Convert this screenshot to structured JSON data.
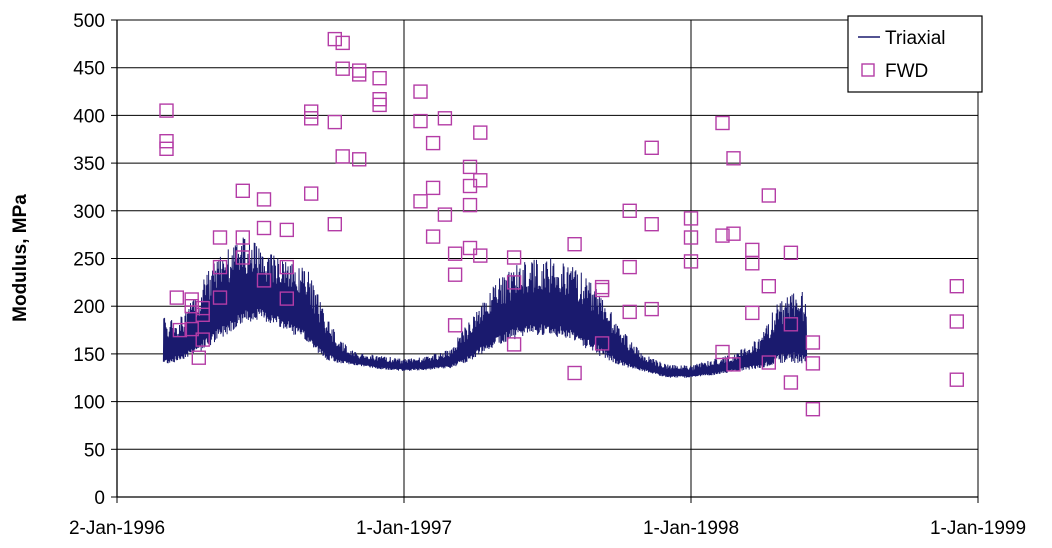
{
  "chart_data": {
    "type": "line",
    "title": "",
    "xlabel": "",
    "ylabel": "Modulus, MPa",
    "x_ticks": [
      "2-Jan-1996",
      "1-Jan-1997",
      "1-Jan-1998",
      "1-Jan-1999"
    ],
    "xlim": [
      "1996-01-02",
      "1999-01-01"
    ],
    "ylim": [
      0,
      500
    ],
    "y_ticks": [
      0,
      50,
      100,
      150,
      200,
      250,
      300,
      350,
      400,
      450,
      500
    ],
    "grid": "both",
    "legend": "top-right",
    "series": [
      {
        "name": "Triaxial",
        "kind": "line",
        "color": "#1a1a6e",
        "note_shape": "daily oscillating modulus; low and high envelope per date",
        "envelope": [
          {
            "x": "1996-03-01",
            "low": 138,
            "high": 190
          },
          {
            "x": "1996-03-20",
            "low": 142,
            "high": 185
          },
          {
            "x": "1996-04-10",
            "low": 150,
            "high": 210
          },
          {
            "x": "1996-05-01",
            "low": 158,
            "high": 245
          },
          {
            "x": "1996-05-20",
            "low": 170,
            "high": 262
          },
          {
            "x": "1996-06-10",
            "low": 182,
            "high": 272
          },
          {
            "x": "1996-07-01",
            "low": 186,
            "high": 265
          },
          {
            "x": "1996-07-20",
            "low": 180,
            "high": 255
          },
          {
            "x": "1996-08-10",
            "low": 172,
            "high": 248
          },
          {
            "x": "1996-09-01",
            "low": 160,
            "high": 238
          },
          {
            "x": "1996-09-20",
            "low": 145,
            "high": 200
          },
          {
            "x": "1996-10-10",
            "low": 140,
            "high": 165
          },
          {
            "x": "1996-11-01",
            "low": 138,
            "high": 152
          },
          {
            "x": "1996-12-01",
            "low": 134,
            "high": 148
          },
          {
            "x": "1997-01-01",
            "low": 132,
            "high": 145
          },
          {
            "x": "1997-02-01",
            "low": 133,
            "high": 148
          },
          {
            "x": "1997-03-01",
            "low": 135,
            "high": 155
          },
          {
            "x": "1997-03-20",
            "low": 140,
            "high": 180
          },
          {
            "x": "1997-04-10",
            "low": 150,
            "high": 205
          },
          {
            "x": "1997-05-01",
            "low": 160,
            "high": 230
          },
          {
            "x": "1997-06-01",
            "low": 168,
            "high": 248
          },
          {
            "x": "1997-07-01",
            "low": 170,
            "high": 252
          },
          {
            "x": "1997-08-01",
            "low": 165,
            "high": 245
          },
          {
            "x": "1997-09-01",
            "low": 150,
            "high": 225
          },
          {
            "x": "1997-10-01",
            "low": 138,
            "high": 180
          },
          {
            "x": "1997-11-01",
            "low": 132,
            "high": 150
          },
          {
            "x": "1997-12-01",
            "low": 125,
            "high": 140
          },
          {
            "x": "1998-01-01",
            "low": 125,
            "high": 138
          },
          {
            "x": "1998-02-01",
            "low": 128,
            "high": 145
          },
          {
            "x": "1998-03-01",
            "low": 132,
            "high": 152
          },
          {
            "x": "1998-04-01",
            "low": 135,
            "high": 170
          },
          {
            "x": "1998-04-20",
            "low": 140,
            "high": 205
          },
          {
            "x": "1998-05-10",
            "low": 140,
            "high": 220
          },
          {
            "x": "1998-05-28",
            "low": 140,
            "high": 215
          }
        ]
      },
      {
        "name": "FWD",
        "kind": "scatter",
        "marker": "open-square",
        "color": "#b43ca6",
        "points": [
          {
            "x": "1996-03-05",
            "y": 405
          },
          {
            "x": "1996-03-05",
            "y": 373
          },
          {
            "x": "1996-03-05",
            "y": 365
          },
          {
            "x": "1996-03-18",
            "y": 209
          },
          {
            "x": "1996-03-22",
            "y": 175
          },
          {
            "x": "1996-04-06",
            "y": 207
          },
          {
            "x": "1996-04-06",
            "y": 200
          },
          {
            "x": "1996-04-06",
            "y": 176
          },
          {
            "x": "1996-04-15",
            "y": 146
          },
          {
            "x": "1996-04-20",
            "y": 198
          },
          {
            "x": "1996-04-20",
            "y": 191
          },
          {
            "x": "1996-04-20",
            "y": 165
          },
          {
            "x": "1996-05-12",
            "y": 272
          },
          {
            "x": "1996-05-12",
            "y": 241
          },
          {
            "x": "1996-05-12",
            "y": 209
          },
          {
            "x": "1996-06-10",
            "y": 321
          },
          {
            "x": "1996-06-10",
            "y": 272
          },
          {
            "x": "1996-06-10",
            "y": 251
          },
          {
            "x": "1996-07-07",
            "y": 312
          },
          {
            "x": "1996-07-07",
            "y": 282
          },
          {
            "x": "1996-07-07",
            "y": 227
          },
          {
            "x": "1996-08-05",
            "y": 280
          },
          {
            "x": "1996-08-05",
            "y": 241
          },
          {
            "x": "1996-08-05",
            "y": 208
          },
          {
            "x": "1996-09-05",
            "y": 404
          },
          {
            "x": "1996-09-05",
            "y": 397
          },
          {
            "x": "1996-09-05",
            "y": 318
          },
          {
            "x": "1996-10-05",
            "y": 480
          },
          {
            "x": "1996-10-05",
            "y": 393
          },
          {
            "x": "1996-10-05",
            "y": 286
          },
          {
            "x": "1996-10-15",
            "y": 476
          },
          {
            "x": "1996-10-15",
            "y": 449
          },
          {
            "x": "1996-10-15",
            "y": 357
          },
          {
            "x": "1996-11-05",
            "y": 447
          },
          {
            "x": "1996-11-05",
            "y": 443
          },
          {
            "x": "1996-11-05",
            "y": 354
          },
          {
            "x": "1996-12-01",
            "y": 439
          },
          {
            "x": "1996-12-01",
            "y": 417
          },
          {
            "x": "1996-12-01",
            "y": 411
          },
          {
            "x": "1997-01-22",
            "y": 425
          },
          {
            "x": "1997-01-22",
            "y": 394
          },
          {
            "x": "1997-01-22",
            "y": 310
          },
          {
            "x": "1997-02-07",
            "y": 371
          },
          {
            "x": "1997-02-07",
            "y": 324
          },
          {
            "x": "1997-02-07",
            "y": 273
          },
          {
            "x": "1997-02-22",
            "y": 397
          },
          {
            "x": "1997-02-22",
            "y": 296
          },
          {
            "x": "1997-03-07",
            "y": 255
          },
          {
            "x": "1997-03-07",
            "y": 233
          },
          {
            "x": "1997-03-07",
            "y": 180
          },
          {
            "x": "1997-03-26",
            "y": 346
          },
          {
            "x": "1997-03-26",
            "y": 326
          },
          {
            "x": "1997-03-26",
            "y": 306
          },
          {
            "x": "1997-03-26",
            "y": 261
          },
          {
            "x": "1997-04-08",
            "y": 382
          },
          {
            "x": "1997-04-08",
            "y": 332
          },
          {
            "x": "1997-04-08",
            "y": 253
          },
          {
            "x": "1997-05-21",
            "y": 251
          },
          {
            "x": "1997-05-21",
            "y": 225
          },
          {
            "x": "1997-05-21",
            "y": 160
          },
          {
            "x": "1997-08-06",
            "y": 265
          },
          {
            "x": "1997-08-06",
            "y": 130
          },
          {
            "x": "1997-09-10",
            "y": 220
          },
          {
            "x": "1997-09-10",
            "y": 217
          },
          {
            "x": "1997-09-10",
            "y": 161
          },
          {
            "x": "1997-10-15",
            "y": 300
          },
          {
            "x": "1997-10-15",
            "y": 241
          },
          {
            "x": "1997-10-15",
            "y": 194
          },
          {
            "x": "1997-11-12",
            "y": 366
          },
          {
            "x": "1997-11-12",
            "y": 286
          },
          {
            "x": "1997-11-12",
            "y": 197
          },
          {
            "x": "1998-01-01",
            "y": 292
          },
          {
            "x": "1998-01-01",
            "y": 272
          },
          {
            "x": "1998-01-01",
            "y": 247
          },
          {
            "x": "1998-02-10",
            "y": 392
          },
          {
            "x": "1998-02-10",
            "y": 274
          },
          {
            "x": "1998-02-10",
            "y": 152
          },
          {
            "x": "1998-02-24",
            "y": 355
          },
          {
            "x": "1998-02-24",
            "y": 276
          },
          {
            "x": "1998-02-24",
            "y": 139
          },
          {
            "x": "1998-03-20",
            "y": 259
          },
          {
            "x": "1998-03-20",
            "y": 245
          },
          {
            "x": "1998-03-20",
            "y": 193
          },
          {
            "x": "1998-04-10",
            "y": 316
          },
          {
            "x": "1998-04-10",
            "y": 221
          },
          {
            "x": "1998-04-10",
            "y": 141
          },
          {
            "x": "1998-05-08",
            "y": 256
          },
          {
            "x": "1998-05-08",
            "y": 181
          },
          {
            "x": "1998-05-08",
            "y": 120
          },
          {
            "x": "1998-06-05",
            "y": 162
          },
          {
            "x": "1998-06-05",
            "y": 140
          },
          {
            "x": "1998-06-05",
            "y": 92
          },
          {
            "x": "1998-12-05",
            "y": 221
          },
          {
            "x": "1998-12-05",
            "y": 184
          },
          {
            "x": "1998-12-05",
            "y": 123
          }
        ]
      }
    ]
  }
}
